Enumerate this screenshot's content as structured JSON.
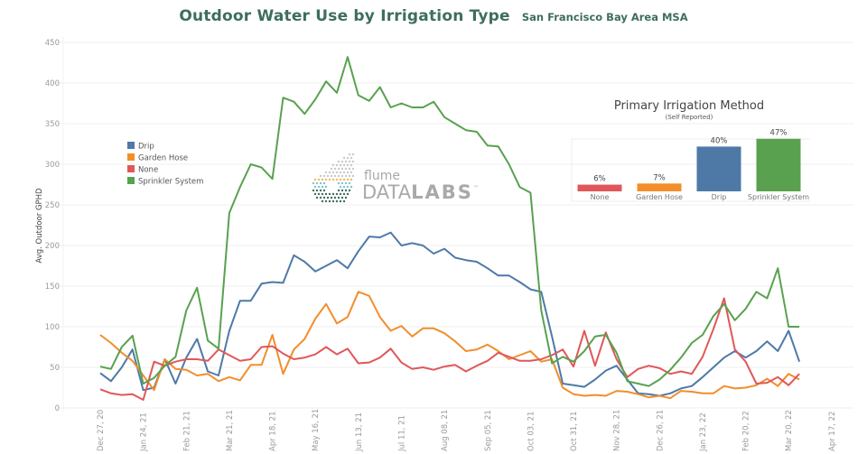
{
  "header": {
    "title": "Outdoor Water Use by Irrigation Type",
    "subtitle": "San Francisco Bay Area MSA"
  },
  "logo": {
    "line1": "flume",
    "line2_light": "DATA",
    "line2_bold": "LABS",
    "trademark": "™"
  },
  "chart_data": [
    {
      "type": "line",
      "title": "Outdoor Water Use by Irrigation Type",
      "subtitle": "San Francisco Bay Area MSA",
      "xlabel": "",
      "ylabel": "Avg. Outdoor GPHD",
      "ylim": [
        0,
        450
      ],
      "yticks": [
        0,
        50,
        100,
        150,
        200,
        250,
        300,
        350,
        400,
        450
      ],
      "xlim_weeks": [
        0,
        68
      ],
      "xtick_labels": [
        "Dec 27, 20",
        "Jan 24, 21",
        "Feb 21, 21",
        "Mar 21, 21",
        "Apr 18, 21",
        "May 16, 21",
        "Jun 13, 21",
        "Jul 11, 21",
        "Aug 08, 21",
        "Sep 05, 21",
        "Oct 03, 21",
        "Oct 31, 21",
        "Nov 28, 21",
        "Dec 26, 21",
        "Jan 23, 22",
        "Feb 20, 22",
        "Mar 20, 22",
        "Apr 17, 22"
      ],
      "xtick_weeks": [
        0,
        4,
        8,
        12,
        16,
        20,
        24,
        28,
        32,
        36,
        40,
        44,
        48,
        52,
        56,
        60,
        64,
        68
      ],
      "x_unit": "weeks since Dec 27, 2020",
      "grid": "horizontal",
      "legend_position": "left",
      "series": [
        {
          "name": "Drip",
          "color": "#4e79a7",
          "values": [
            43,
            33,
            50,
            72,
            22,
            25,
            60,
            30,
            62,
            85,
            45,
            40,
            95,
            132,
            132,
            153,
            155,
            154,
            188,
            180,
            168,
            175,
            182,
            172,
            193,
            211,
            210,
            216,
            200,
            203,
            200,
            190,
            196,
            185,
            182,
            180,
            172,
            163,
            163,
            155,
            146,
            143,
            88,
            30,
            28,
            26,
            35,
            46,
            52,
            35,
            18,
            17,
            15,
            18,
            24,
            27,
            38,
            50,
            62,
            70,
            62,
            70,
            82,
            70,
            95,
            57
          ]
        },
        {
          "name": "Garden Hose",
          "color": "#f28e2b",
          "values": [
            90,
            80,
            68,
            58,
            40,
            22,
            60,
            48,
            47,
            40,
            42,
            33,
            38,
            34,
            53,
            53,
            90,
            42,
            72,
            85,
            110,
            128,
            104,
            112,
            143,
            138,
            112,
            95,
            101,
            88,
            98,
            98,
            92,
            82,
            70,
            72,
            78,
            70,
            60,
            65,
            70,
            57,
            60,
            25,
            17,
            15,
            16,
            15,
            21,
            20,
            17,
            13,
            15,
            12,
            21,
            20,
            18,
            18,
            27,
            24,
            25,
            28,
            36,
            27,
            42,
            35
          ]
        },
        {
          "name": "None",
          "color": "#e15759",
          "values": [
            23,
            18,
            16,
            17,
            10,
            57,
            52,
            57,
            60,
            60,
            58,
            72,
            65,
            58,
            60,
            75,
            76,
            67,
            60,
            62,
            66,
            75,
            66,
            73,
            55,
            56,
            62,
            73,
            56,
            48,
            50,
            47,
            51,
            53,
            45,
            52,
            58,
            68,
            63,
            58,
            58,
            60,
            65,
            72,
            51,
            95,
            52,
            93,
            60,
            38,
            48,
            52,
            49,
            42,
            45,
            42,
            63,
            97,
            135,
            72,
            57,
            30,
            31,
            38,
            28,
            42
          ]
        },
        {
          "name": "Sprinkler System",
          "color": "#59a14f",
          "values": [
            51,
            48,
            75,
            89,
            30,
            37,
            52,
            63,
            120,
            148,
            83,
            73,
            240,
            272,
            300,
            296,
            282,
            382,
            377,
            362,
            380,
            402,
            388,
            432,
            385,
            378,
            395,
            370,
            375,
            370,
            370,
            377,
            358,
            350,
            342,
            340,
            323,
            322,
            300,
            272,
            265,
            120,
            55,
            63,
            57,
            70,
            88,
            90,
            68,
            33,
            30,
            27,
            35,
            47,
            62,
            80,
            90,
            113,
            128,
            108,
            122,
            143,
            135,
            172,
            100,
            100
          ]
        }
      ]
    },
    {
      "type": "bar",
      "title": "Primary Irrigation Method",
      "subtitle": "(Self Reported)",
      "categories": [
        "None",
        "Garden Hose",
        "Drip",
        "Sprinkler System"
      ],
      "values": [
        6,
        7,
        40,
        47
      ],
      "value_labels": [
        "6%",
        "7%",
        "40%",
        "47%"
      ],
      "colors": [
        "#e15759",
        "#f28e2b",
        "#4e79a7",
        "#59a14f"
      ],
      "unit": "%"
    }
  ]
}
